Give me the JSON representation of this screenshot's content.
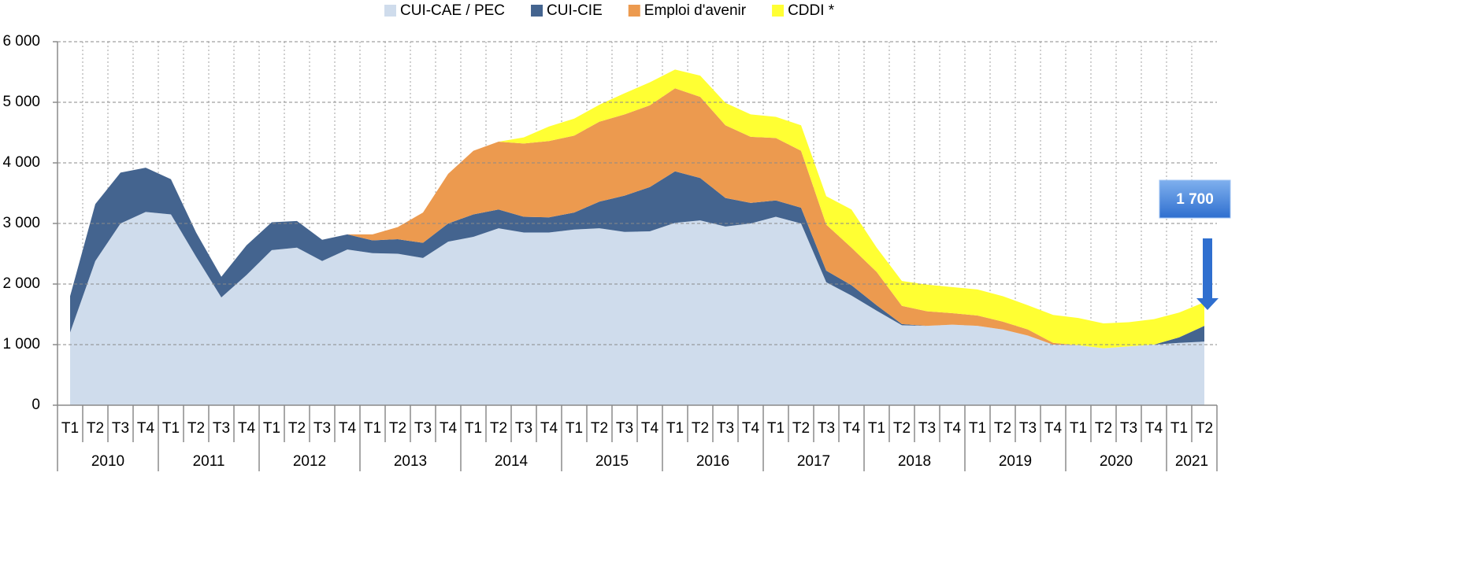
{
  "chart_data": {
    "type": "stacked_area",
    "categories": [
      "T1",
      "T2",
      "T3",
      "T4",
      "T1",
      "T2",
      "T3",
      "T4",
      "T1",
      "T2",
      "T3",
      "T4",
      "T1",
      "T2",
      "T3",
      "T4",
      "T1",
      "T2",
      "T3",
      "T4",
      "T1",
      "T2",
      "T3",
      "T4",
      "T1",
      "T2",
      "T3",
      "T4",
      "T1",
      "T2",
      "T3",
      "T4",
      "T1",
      "T2",
      "T3",
      "T4",
      "T1",
      "T2",
      "T3",
      "T4",
      "T1",
      "T2",
      "T3",
      "T4",
      "T1",
      "T2"
    ],
    "years": [
      "2010",
      "2011",
      "2012",
      "2013",
      "2014",
      "2015",
      "2016",
      "2017",
      "2018",
      "2019",
      "2020",
      "2021"
    ],
    "series": [
      {
        "name": "CUI-CAE / PEC",
        "color": "#cfdcec",
        "values": [
          1200,
          2380,
          3000,
          3190,
          3150,
          2450,
          1780,
          2150,
          2560,
          2600,
          2380,
          2570,
          2510,
          2500,
          2430,
          2700,
          2780,
          2920,
          2850,
          2850,
          2900,
          2920,
          2860,
          2870,
          3010,
          3050,
          2950,
          3000,
          3110,
          3000,
          2030,
          1810,
          1560,
          1320,
          1310,
          1330,
          1310,
          1250,
          1150,
          1000,
          990,
          940,
          970,
          1000,
          1030,
          1050
        ]
      },
      {
        "name": "CUI-CIE",
        "color": "#44648f",
        "values": [
          600,
          940,
          840,
          730,
          580,
          400,
          340,
          490,
          460,
          440,
          350,
          250,
          210,
          240,
          250,
          300,
          370,
          310,
          260,
          250,
          280,
          440,
          600,
          730,
          850,
          700,
          470,
          340,
          270,
          260,
          190,
          170,
          90,
          20,
          0,
          0,
          0,
          0,
          0,
          0,
          0,
          0,
          0,
          0,
          90,
          260
        ]
      },
      {
        "name": "Emploi d'avenir",
        "color": "#ec9a4f",
        "values": [
          0,
          0,
          0,
          0,
          0,
          0,
          0,
          0,
          0,
          0,
          0,
          0,
          100,
          200,
          500,
          820,
          1050,
          1120,
          1210,
          1260,
          1270,
          1320,
          1340,
          1350,
          1370,
          1340,
          1200,
          1090,
          1030,
          940,
          760,
          620,
          550,
          300,
          240,
          190,
          170,
          130,
          100,
          30,
          0,
          0,
          0,
          0,
          0,
          0
        ]
      },
      {
        "name": "CDDI *",
        "color": "#ffff33",
        "values": [
          0,
          0,
          0,
          0,
          0,
          0,
          0,
          0,
          0,
          0,
          0,
          0,
          0,
          0,
          0,
          0,
          0,
          0,
          100,
          240,
          280,
          280,
          350,
          380,
          310,
          350,
          370,
          370,
          350,
          420,
          470,
          630,
          400,
          410,
          440,
          430,
          430,
          420,
          400,
          460,
          450,
          410,
          400,
          420,
          410,
          390
        ]
      }
    ],
    "ylim": [
      0,
      6000
    ],
    "yticks": [
      0,
      {
        "value": 1000,
        "label": "1 000"
      },
      {
        "value": 2000,
        "label": "2 000"
      },
      {
        "value": 3000,
        "label": "3 000"
      },
      {
        "value": 4000,
        "label": "4 000"
      },
      {
        "value": 5000,
        "label": "5 000"
      },
      {
        "value": 6000,
        "label": "6 000"
      }
    ],
    "grid": true,
    "legend": "top",
    "annotation": "1 700"
  }
}
